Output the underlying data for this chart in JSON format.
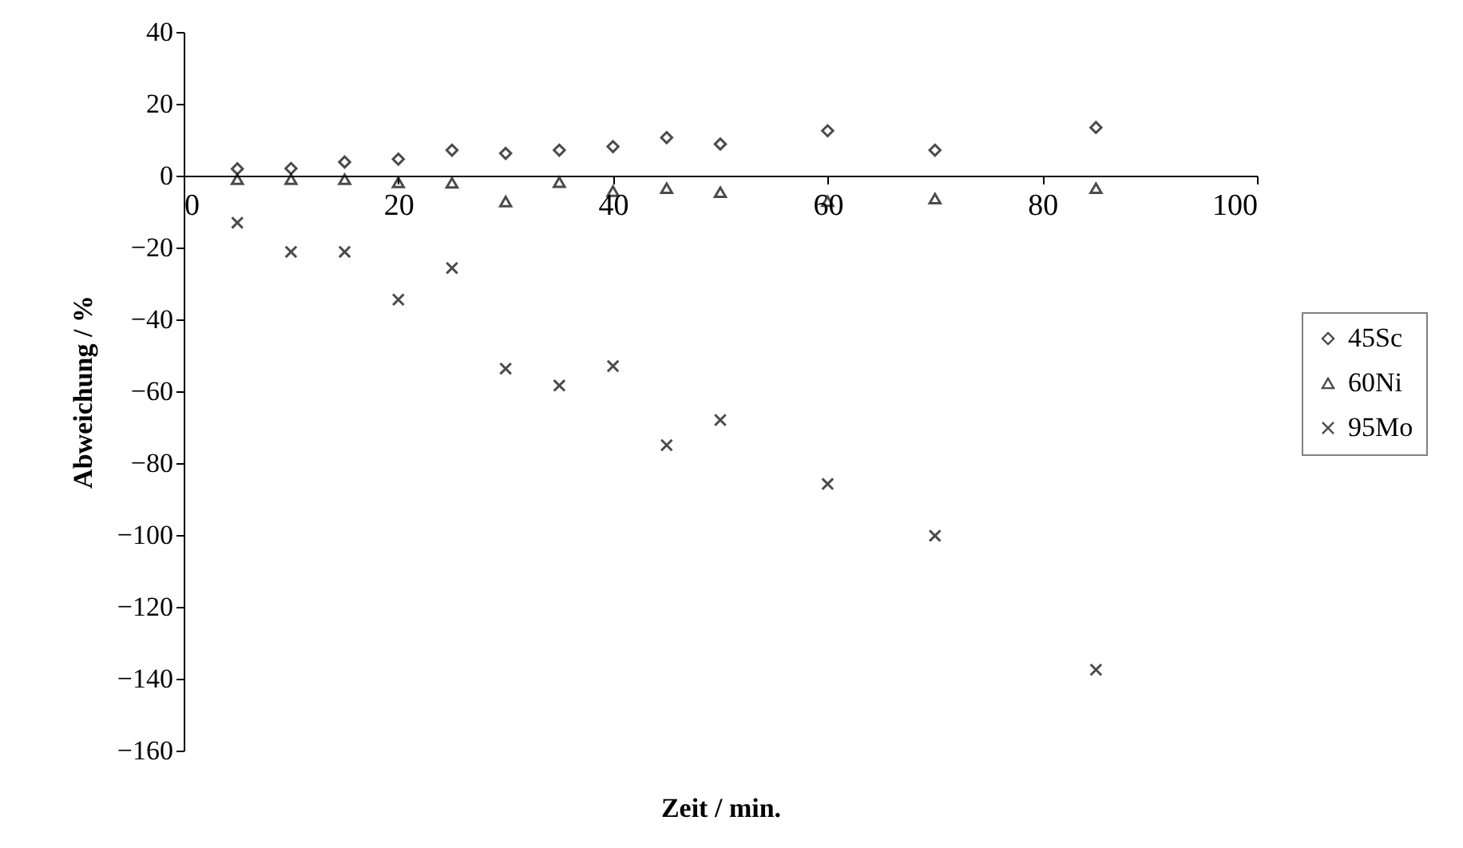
{
  "chart_data": {
    "type": "scatter",
    "xlabel": "Zeit / min.",
    "ylabel": "Abweichung / %",
    "x": [
      5,
      10,
      15,
      20,
      25,
      30,
      35,
      40,
      45,
      50,
      60,
      70,
      85
    ],
    "series": [
      {
        "name": "45Sc",
        "color": "#000000",
        "marker": "diamond",
        "values": [
          1.9,
          2,
          3.8,
          4.6,
          7.1,
          6.2,
          7.1,
          8.1,
          10.6,
          8.8,
          12.5,
          7.1,
          13.4
        ]
      },
      {
        "name": "60Ni",
        "color": "#000000",
        "marker": "triangle",
        "values": [
          -1,
          -1,
          -1,
          -1.9,
          -2,
          -7.2,
          -1.8,
          -4.3,
          -3.5,
          -4.6,
          -7.1,
          -6.4,
          -3.5
        ]
      },
      {
        "name": "95Mo",
        "color": "#000000",
        "marker": "cross",
        "values": [
          -13.1,
          -21.2,
          -21.2,
          -34.5,
          -25.7,
          -53.7,
          -58.4,
          -53,
          -75,
          -68,
          -85.8,
          -100.2,
          -137.5
        ]
      }
    ],
    "xlim": [
      0,
      100
    ],
    "xticks": [
      0,
      20,
      40,
      60,
      80,
      100
    ],
    "ylim": [
      -160,
      40
    ],
    "yticks": [
      -160,
      -140,
      -120,
      -100,
      -80,
      -60,
      -40,
      -20,
      0,
      20,
      40
    ],
    "legend": "right",
    "grid": false
  }
}
